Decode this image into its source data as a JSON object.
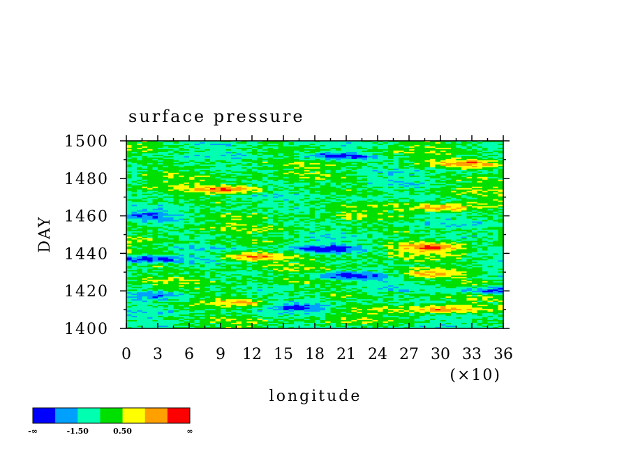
{
  "chart_data": {
    "type": "heatmap",
    "title": "surface pressure",
    "xlabel": "longitude",
    "ylabel": "DAY",
    "x_multiplier_label": "(×10)",
    "x_ticks": [
      "0",
      "3",
      "6",
      "9",
      "12",
      "15",
      "18",
      "21",
      "24",
      "27",
      "30",
      "33",
      "36"
    ],
    "y_ticks": [
      "1400",
      "1420",
      "1440",
      "1460",
      "1480",
      "1500"
    ],
    "xlim": [
      0,
      36
    ],
    "ylim": [
      1400,
      1500
    ],
    "grid": false,
    "colorbar": {
      "placement": "bottom-left",
      "colors": [
        "#0000ff",
        "#00a0ff",
        "#00ffb0",
        "#00e000",
        "#ffff00",
        "#ffa000",
        "#ff0000"
      ],
      "labels": [
        "-∞",
        "-1.50",
        "0.50",
        "∞"
      ]
    },
    "features": [
      {
        "lon": 33,
        "day": 1488,
        "level": 6
      },
      {
        "lon": 10,
        "day": 1474,
        "level": 6
      },
      {
        "lon": 30,
        "day": 1464,
        "level": 6
      },
      {
        "lon": 12,
        "day": 1438,
        "level": 6
      },
      {
        "lon": 29,
        "day": 1443,
        "level": 6
      },
      {
        "lon": 29,
        "day": 1429,
        "level": 6
      },
      {
        "lon": 11,
        "day": 1414,
        "level": 6
      },
      {
        "lon": 30,
        "day": 1410,
        "level": 6
      },
      {
        "lon": 20,
        "day": 1492,
        "level": 0
      },
      {
        "lon": 19,
        "day": 1442,
        "level": 0
      },
      {
        "lon": 21,
        "day": 1428,
        "level": 0
      },
      {
        "lon": 3,
        "day": 1418,
        "level": 0
      },
      {
        "lon": 17,
        "day": 1411,
        "level": 0
      },
      {
        "lon": 35,
        "day": 1420,
        "level": 0
      },
      {
        "lon": 2,
        "day": 1437,
        "level": 0
      },
      {
        "lon": 2,
        "day": 1460,
        "level": 1
      },
      {
        "lon": 22,
        "day": 1468,
        "level": 2
      }
    ]
  }
}
